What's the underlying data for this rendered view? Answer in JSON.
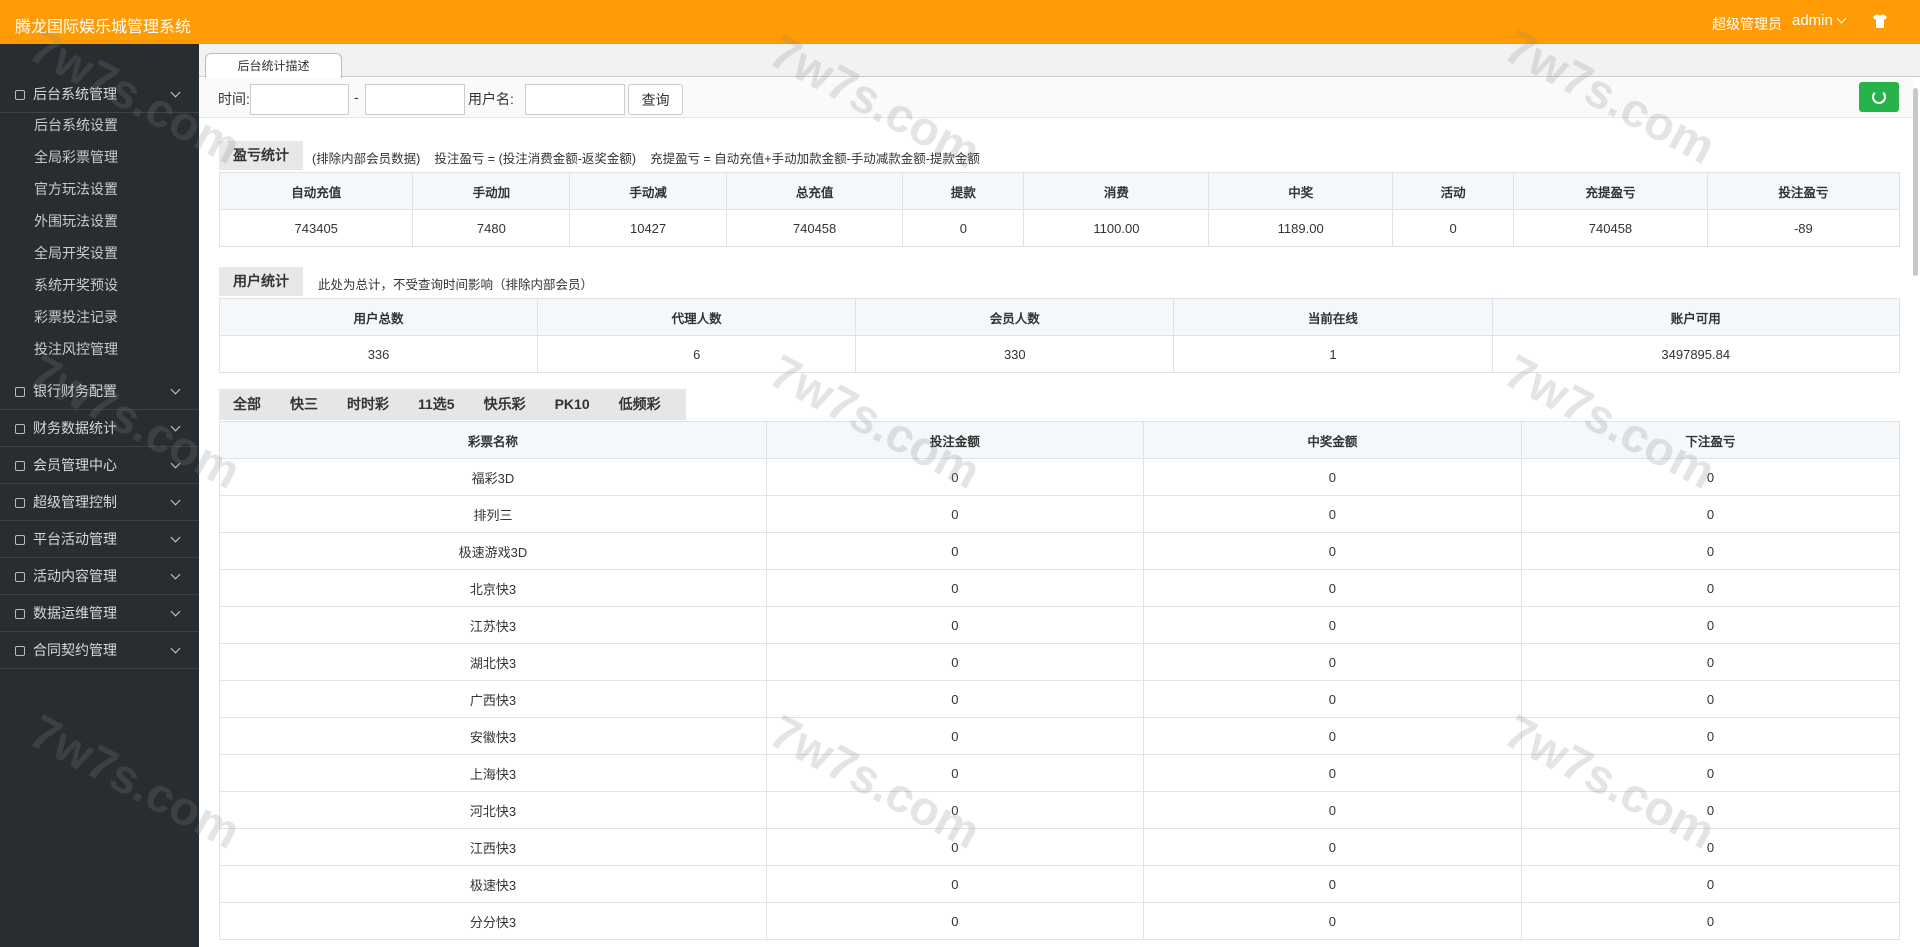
{
  "header": {
    "title": "腾龙国际娱乐城管理系统",
    "role": "超级管理员",
    "user": "admin"
  },
  "watermark": "7w7s.com",
  "sidebar": {
    "groups": [
      {
        "label": "后台系统管理",
        "items": [
          "后台系统设置",
          "全局彩票管理",
          "官方玩法设置",
          "外围玩法设置",
          "全局开奖设置",
          "系统开奖预设",
          "彩票投注记录",
          "投注风控管理"
        ]
      },
      {
        "label": "银行财务配置"
      },
      {
        "label": "财务数据统计"
      },
      {
        "label": "会员管理中心"
      },
      {
        "label": "超级管理控制"
      },
      {
        "label": "平台活动管理"
      },
      {
        "label": "活动内容管理"
      },
      {
        "label": "数据运维管理"
      },
      {
        "label": "合同契约管理"
      }
    ]
  },
  "tab": "后台统计描述",
  "filter": {
    "time_label": "时间:",
    "separator": "-",
    "user_label": "用户名:",
    "button": "查询"
  },
  "profit": {
    "title": "盈亏统计",
    "notes": [
      "(排除内部会员数据)",
      "投注盈亏 = (投注消费金额-返奖金额)",
      "充提盈亏 = 自动充值+手动加款金额-手动减款金额-提款金额"
    ],
    "table": {
      "columns": [
        "自动充值",
        "手动加",
        "手动减",
        "总充值",
        "提款",
        "消费",
        "中奖",
        "活动",
        "充提盈亏",
        "投注盈亏"
      ],
      "rows": [
        [
          "743405",
          "7480",
          "10427",
          "740458",
          "0",
          "1100.00",
          "1189.00",
          "0",
          "740458",
          "-89"
        ]
      ]
    }
  },
  "users": {
    "title": "用户统计",
    "notes": [
      "此处为总计，不受查询时间影响（排除内部会员）"
    ],
    "table": {
      "columns": [
        "用户总数",
        "代理人数",
        "会员人数",
        "当前在线",
        "账户可用"
      ],
      "rows": [
        [
          "336",
          "6",
          "330",
          "1",
          "3497895.84"
        ]
      ]
    }
  },
  "lottery": {
    "tabs": [
      "全部",
      "快三",
      "时时彩",
      "11选5",
      "快乐彩",
      "PK10",
      "低频彩"
    ],
    "table": {
      "columns": [
        "彩票名称",
        "投注金额",
        "中奖金额",
        "下注盈亏"
      ],
      "rows": [
        [
          "福彩3D",
          "0",
          "0",
          "0"
        ],
        [
          "排列三",
          "0",
          "0",
          "0"
        ],
        [
          "极速游戏3D",
          "0",
          "0",
          "0"
        ],
        [
          "北京快3",
          "0",
          "0",
          "0"
        ],
        [
          "江苏快3",
          "0",
          "0",
          "0"
        ],
        [
          "湖北快3",
          "0",
          "0",
          "0"
        ],
        [
          "广西快3",
          "0",
          "0",
          "0"
        ],
        [
          "安徽快3",
          "0",
          "0",
          "0"
        ],
        [
          "上海快3",
          "0",
          "0",
          "0"
        ],
        [
          "河北快3",
          "0",
          "0",
          "0"
        ],
        [
          "江西快3",
          "0",
          "0",
          "0"
        ],
        [
          "极速快3",
          "0",
          "0",
          "0"
        ],
        [
          "分分快3",
          "0",
          "0",
          "0"
        ]
      ]
    }
  }
}
